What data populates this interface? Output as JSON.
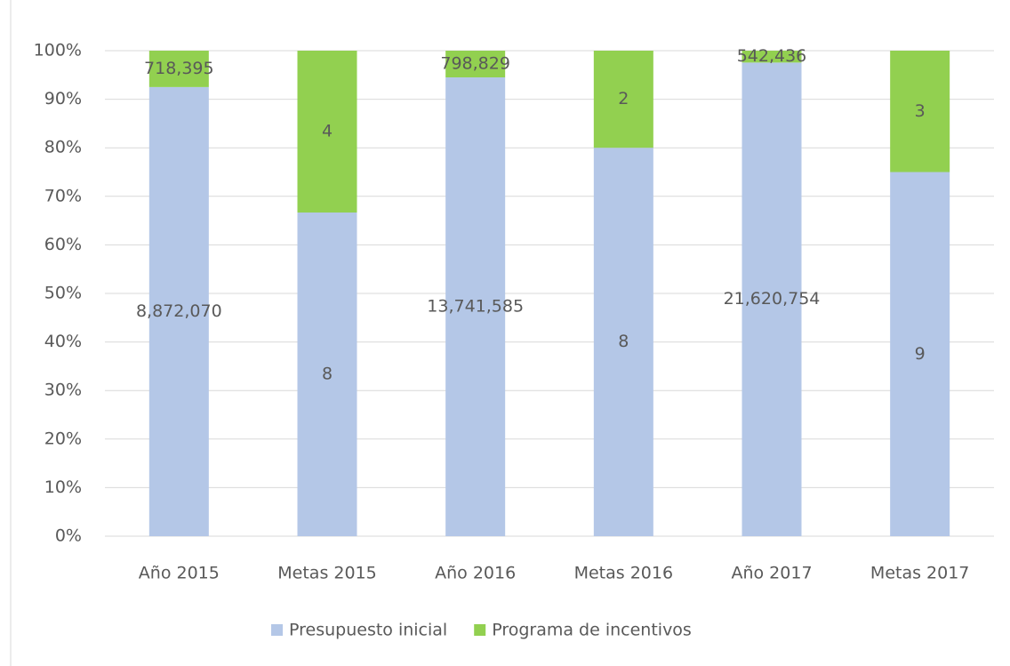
{
  "chart_data": {
    "type": "stacked_percent_bar",
    "categories": [
      "Año 2015",
      "Metas 2015",
      "Año 2016",
      "Metas 2016",
      "Año 2017",
      "Metas 2017"
    ],
    "series": [
      {
        "name": "Presupuesto inicial",
        "color": "#b4c7e7",
        "values": [
          8872070,
          8,
          13741585,
          8,
          21620754,
          9
        ],
        "value_labels": [
          "8,872,070",
          "8",
          "13,741,585",
          "8",
          "21,620,754",
          "9"
        ]
      },
      {
        "name": "Programa de incentivos",
        "color": "#92d050",
        "values": [
          718395,
          4,
          798829,
          2,
          542436,
          3
        ],
        "value_labels": [
          "718,395",
          "4",
          "798,829",
          "2",
          "542,436",
          "3"
        ]
      }
    ],
    "ylim": [
      0,
      100
    ],
    "yticks": [
      {
        "value": 0,
        "label": "0%"
      },
      {
        "value": 10,
        "label": "10%"
      },
      {
        "value": 20,
        "label": "20%"
      },
      {
        "value": 30,
        "label": "30%"
      },
      {
        "value": 40,
        "label": "40%"
      },
      {
        "value": 50,
        "label": "50%"
      },
      {
        "value": 60,
        "label": "60%"
      },
      {
        "value": 70,
        "label": "70%"
      },
      {
        "value": 80,
        "label": "80%"
      },
      {
        "value": 90,
        "label": "90%"
      },
      {
        "value": 100,
        "label": "100%"
      }
    ],
    "grid": true,
    "legend": "bottom"
  }
}
